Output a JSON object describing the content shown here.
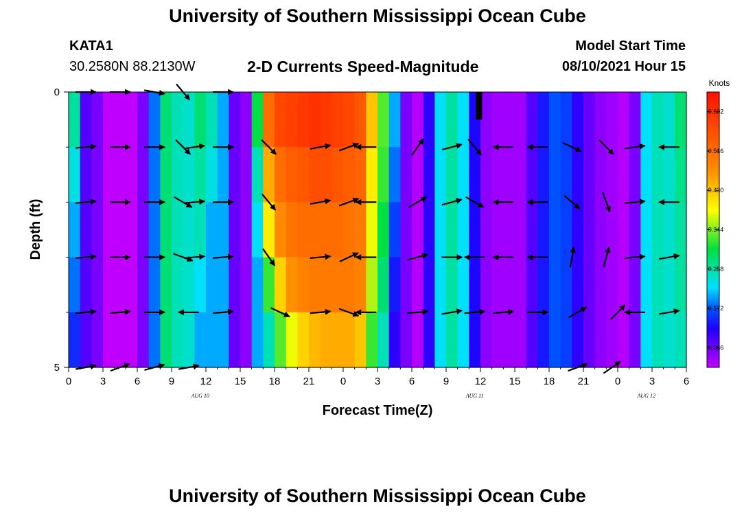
{
  "header": {
    "title": "University of Southern Mississippi Ocean Cube",
    "station": "KATA1",
    "coords": "30.2580N  88.2130W",
    "subtitle": "2-D Currents Speed-Magnitude",
    "model_start_label": "Model Start Time",
    "model_start_value": "08/10/2021 Hour 15"
  },
  "footer": {
    "title": "University of Southern Mississippi Ocean Cube"
  },
  "chart_data": {
    "type": "heatmap",
    "title": "2-D Currents Speed-Magnitude",
    "xlabel": "Forecast Time(Z)",
    "ylabel": "Depth (ft)",
    "x_tick_labels": [
      "0",
      "3",
      "6",
      "9",
      "12",
      "15",
      "18",
      "21",
      "0",
      "3",
      "6",
      "9",
      "12",
      "15",
      "18",
      "21",
      "0",
      "3",
      "6"
    ],
    "date_labels": [
      {
        "label": "AUG  10",
        "hour_index": 11.5
      },
      {
        "label": "AUG  11",
        "hour_index": 35.5
      },
      {
        "label": "AUG  12",
        "hour_index": 50.5
      }
    ],
    "ylim": [
      0,
      5
    ],
    "y_tick_labels": [
      "0",
      "5"
    ],
    "colorbar": {
      "unit": "Knots",
      "min": 0.043,
      "max": 0.645,
      "tick_values": [
        0.086,
        0.172,
        0.258,
        0.344,
        0.43,
        0.516,
        0.602
      ],
      "tick_labels": [
        "0.086",
        "0.172",
        "0.258",
        "0.344",
        "0.430",
        "0.516",
        "0.602"
      ]
    },
    "hours": 54,
    "depth_levels": [
      0.5,
      1.5,
      2.5,
      3.5,
      4.5
    ],
    "speed_columns_surface_to_bottom": [
      [
        0.26,
        0.23,
        0.2,
        0.18,
        0.15
      ],
      [
        0.1,
        0.1,
        0.1,
        0.1,
        0.1
      ],
      [
        0.08,
        0.08,
        0.08,
        0.08,
        0.08
      ],
      [
        0.04,
        0.04,
        0.04,
        0.04,
        0.04
      ],
      [
        0.04,
        0.04,
        0.04,
        0.04,
        0.04
      ],
      [
        0.04,
        0.04,
        0.04,
        0.04,
        0.04
      ],
      [
        0.08,
        0.08,
        0.08,
        0.08,
        0.08
      ],
      [
        0.18,
        0.18,
        0.18,
        0.18,
        0.18
      ],
      [
        0.28,
        0.28,
        0.28,
        0.28,
        0.28
      ],
      [
        0.25,
        0.25,
        0.25,
        0.25,
        0.25
      ],
      [
        0.24,
        0.24,
        0.24,
        0.24,
        0.24
      ],
      [
        0.28,
        0.26,
        0.25,
        0.22,
        0.2
      ],
      [
        0.25,
        0.23,
        0.2,
        0.2,
        0.2
      ],
      [
        0.2,
        0.2,
        0.2,
        0.2,
        0.2
      ],
      [
        0.09,
        0.09,
        0.09,
        0.09,
        0.09
      ],
      [
        0.07,
        0.07,
        0.07,
        0.07,
        0.07
      ],
      [
        0.3,
        0.25,
        0.22,
        0.2,
        0.2
      ],
      [
        0.52,
        0.45,
        0.4,
        0.32,
        0.25
      ],
      [
        0.57,
        0.52,
        0.48,
        0.42,
        0.33
      ],
      [
        0.58,
        0.54,
        0.51,
        0.47,
        0.38
      ],
      [
        0.59,
        0.55,
        0.52,
        0.49,
        0.42
      ],
      [
        0.6,
        0.56,
        0.52,
        0.5,
        0.44
      ],
      [
        0.59,
        0.56,
        0.52,
        0.5,
        0.45
      ],
      [
        0.58,
        0.55,
        0.52,
        0.5,
        0.45
      ],
      [
        0.57,
        0.54,
        0.51,
        0.5,
        0.45
      ],
      [
        0.55,
        0.53,
        0.5,
        0.49,
        0.43
      ],
      [
        0.43,
        0.4,
        0.38,
        0.36,
        0.32
      ],
      [
        0.33,
        0.32,
        0.3,
        0.28,
        0.25
      ],
      [
        0.2,
        0.18,
        0.16,
        0.14,
        0.12
      ],
      [
        0.08,
        0.08,
        0.08,
        0.08,
        0.08
      ],
      [
        0.05,
        0.05,
        0.05,
        0.05,
        0.05
      ],
      [
        0.12,
        0.12,
        0.12,
        0.12,
        0.12
      ],
      [
        0.22,
        0.22,
        0.22,
        0.22,
        0.22
      ],
      [
        0.26,
        0.26,
        0.26,
        0.26,
        0.26
      ],
      [
        0.22,
        0.22,
        0.22,
        0.22,
        0.22
      ],
      [
        0.13,
        0.13,
        0.13,
        0.13,
        0.13
      ],
      [
        0.07,
        0.07,
        0.07,
        0.07,
        0.07
      ],
      [
        0.06,
        0.06,
        0.06,
        0.06,
        0.06
      ],
      [
        0.06,
        0.06,
        0.06,
        0.06,
        0.06
      ],
      [
        0.06,
        0.06,
        0.06,
        0.06,
        0.06
      ],
      [
        0.1,
        0.1,
        0.1,
        0.1,
        0.1
      ],
      [
        0.14,
        0.14,
        0.14,
        0.14,
        0.14
      ],
      [
        0.17,
        0.17,
        0.17,
        0.17,
        0.17
      ],
      [
        0.16,
        0.16,
        0.16,
        0.16,
        0.16
      ],
      [
        0.12,
        0.12,
        0.12,
        0.12,
        0.12
      ],
      [
        0.09,
        0.09,
        0.09,
        0.09,
        0.09
      ],
      [
        0.07,
        0.07,
        0.07,
        0.07,
        0.07
      ],
      [
        0.06,
        0.06,
        0.06,
        0.06,
        0.06
      ],
      [
        0.05,
        0.05,
        0.05,
        0.05,
        0.05
      ],
      [
        0.08,
        0.08,
        0.08,
        0.08,
        0.08
      ],
      [
        0.22,
        0.22,
        0.22,
        0.22,
        0.22
      ],
      [
        0.25,
        0.25,
        0.25,
        0.25,
        0.25
      ],
      [
        0.24,
        0.24,
        0.24,
        0.24,
        0.24
      ],
      [
        0.28,
        0.27,
        0.26,
        0.26,
        0.25
      ]
    ],
    "arrows": [
      {
        "t": 1.5,
        "d": 0,
        "a": 0
      },
      {
        "t": 4.5,
        "d": 0,
        "a": 0
      },
      {
        "t": 7.5,
        "d": 0,
        "a": -10
      },
      {
        "t": 10,
        "d": 0,
        "a": -50
      },
      {
        "t": 13.5,
        "d": 0,
        "a": 0
      },
      {
        "t": 1.5,
        "d": 1,
        "a": 5
      },
      {
        "t": 4.5,
        "d": 1,
        "a": 0
      },
      {
        "t": 7.5,
        "d": 1,
        "a": 0
      },
      {
        "t": 10,
        "d": 1,
        "a": -45
      },
      {
        "t": 11,
        "d": 1,
        "a": 8
      },
      {
        "t": 13.5,
        "d": 1,
        "a": 0
      },
      {
        "t": 17.5,
        "d": 1,
        "a": -45
      },
      {
        "t": 22,
        "d": 1,
        "a": 10
      },
      {
        "t": 24.5,
        "d": 1,
        "a": 20
      },
      {
        "t": 26,
        "d": 1,
        "a": 180
      },
      {
        "t": 30.5,
        "d": 1,
        "a": 55
      },
      {
        "t": 33.5,
        "d": 1,
        "a": 15
      },
      {
        "t": 35.5,
        "d": 1,
        "a": -50
      },
      {
        "t": 38,
        "d": 1,
        "a": 180
      },
      {
        "t": 41,
        "d": 1,
        "a": 180
      },
      {
        "t": 44,
        "d": 1,
        "a": -25
      },
      {
        "t": 47,
        "d": 1,
        "a": -45
      },
      {
        "t": 49.5,
        "d": 1,
        "a": 8
      },
      {
        "t": 52.5,
        "d": 1,
        "a": 180
      },
      {
        "t": 1.5,
        "d": 2,
        "a": 5
      },
      {
        "t": 4.5,
        "d": 2,
        "a": 0
      },
      {
        "t": 7.5,
        "d": 2,
        "a": 0
      },
      {
        "t": 10,
        "d": 2,
        "a": -30
      },
      {
        "t": 11,
        "d": 2,
        "a": 5
      },
      {
        "t": 13.5,
        "d": 2,
        "a": 0
      },
      {
        "t": 17.5,
        "d": 2,
        "a": -50
      },
      {
        "t": 22,
        "d": 2,
        "a": 10
      },
      {
        "t": 24.5,
        "d": 2,
        "a": 20
      },
      {
        "t": 26,
        "d": 2,
        "a": 180
      },
      {
        "t": 30.5,
        "d": 2,
        "a": 30
      },
      {
        "t": 33.5,
        "d": 2,
        "a": 15
      },
      {
        "t": 35.5,
        "d": 2,
        "a": -30
      },
      {
        "t": 38,
        "d": 2,
        "a": 180
      },
      {
        "t": 41,
        "d": 2,
        "a": 180
      },
      {
        "t": 44,
        "d": 2,
        "a": -40
      },
      {
        "t": 47,
        "d": 2,
        "a": -70
      },
      {
        "t": 49.5,
        "d": 2,
        "a": 5
      },
      {
        "t": 52.5,
        "d": 2,
        "a": 180
      },
      {
        "t": 1.5,
        "d": 3,
        "a": 5
      },
      {
        "t": 4.5,
        "d": 3,
        "a": 0
      },
      {
        "t": 7.5,
        "d": 3,
        "a": 0
      },
      {
        "t": 10,
        "d": 3,
        "a": -20
      },
      {
        "t": 11,
        "d": 3,
        "a": 5
      },
      {
        "t": 13.5,
        "d": 3,
        "a": 5
      },
      {
        "t": 17.5,
        "d": 3,
        "a": -55
      },
      {
        "t": 22,
        "d": 3,
        "a": 5
      },
      {
        "t": 24.5,
        "d": 3,
        "a": 25
      },
      {
        "t": 26,
        "d": 3,
        "a": 180
      },
      {
        "t": 30.5,
        "d": 3,
        "a": 15
      },
      {
        "t": 33.5,
        "d": 3,
        "a": 0
      },
      {
        "t": 35.5,
        "d": 3,
        "a": 180
      },
      {
        "t": 38,
        "d": 3,
        "a": 180
      },
      {
        "t": 41,
        "d": 3,
        "a": 180
      },
      {
        "t": 44,
        "d": 3,
        "a": 80
      },
      {
        "t": 47,
        "d": 3,
        "a": 75
      },
      {
        "t": 49.5,
        "d": 3,
        "a": 5
      },
      {
        "t": 52.5,
        "d": 3,
        "a": 10
      },
      {
        "t": 1.5,
        "d": 4,
        "a": 5
      },
      {
        "t": 4.5,
        "d": 4,
        "a": 5
      },
      {
        "t": 7.5,
        "d": 4,
        "a": 0
      },
      {
        "t": 10.5,
        "d": 4,
        "a": 180
      },
      {
        "t": 13.5,
        "d": 4,
        "a": 5
      },
      {
        "t": 18.5,
        "d": 4,
        "a": -25
      },
      {
        "t": 22,
        "d": 4,
        "a": 5
      },
      {
        "t": 24.5,
        "d": 4,
        "a": -20
      },
      {
        "t": 26,
        "d": 4,
        "a": 180
      },
      {
        "t": 30.5,
        "d": 4,
        "a": 5
      },
      {
        "t": 33.5,
        "d": 4,
        "a": 10
      },
      {
        "t": 35.5,
        "d": 4,
        "a": 5
      },
      {
        "t": 38,
        "d": 4,
        "a": 5
      },
      {
        "t": 41,
        "d": 4,
        "a": 0
      },
      {
        "t": 44.5,
        "d": 4,
        "a": 30
      },
      {
        "t": 48,
        "d": 4,
        "a": 45
      },
      {
        "t": 49.5,
        "d": 4,
        "a": 180
      },
      {
        "t": 52.5,
        "d": 4,
        "a": 10
      },
      {
        "t": 1.5,
        "d": 5,
        "a": 10
      },
      {
        "t": 4.5,
        "d": 5,
        "a": 20
      },
      {
        "t": 7.5,
        "d": 5,
        "a": 15
      },
      {
        "t": 10.5,
        "d": 5,
        "a": 10
      },
      {
        "t": 44.5,
        "d": 5,
        "a": 20
      },
      {
        "t": 47.5,
        "d": 5,
        "a": 35
      }
    ]
  }
}
